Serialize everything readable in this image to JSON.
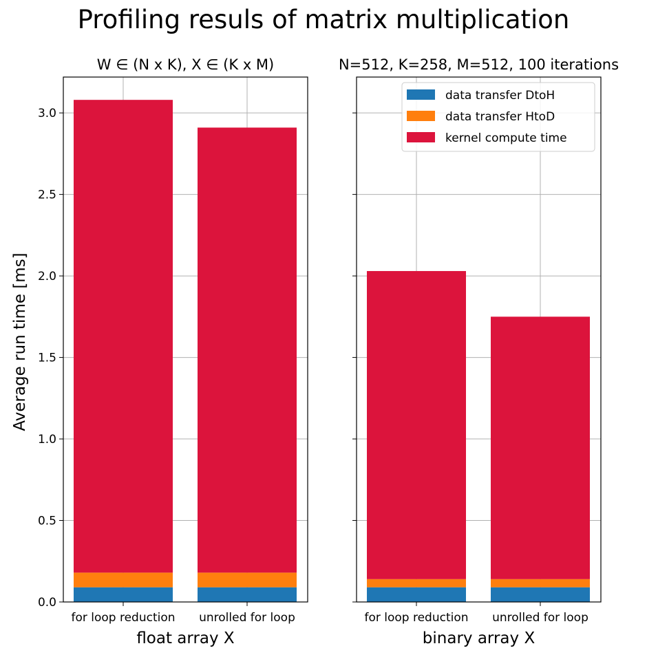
{
  "chart_data": {
    "title": "Profiling resuls of matrix multiplication",
    "ylabel": "Average run time [ms]",
    "ylim": [
      0,
      3.22
    ],
    "yticks": [
      "0.0",
      "0.5",
      "1.0",
      "1.5",
      "2.0",
      "2.5",
      "3.0"
    ],
    "ytick_values": [
      0,
      0.5,
      1.0,
      1.5,
      2.0,
      2.5,
      3.0
    ],
    "grid": true,
    "legend": {
      "placement": "top-right",
      "entries": [
        "data transfer DtoH",
        "data transfer HtoD",
        "kernel compute time"
      ]
    },
    "colors": {
      "data transfer DtoH": "#1f77b4",
      "data transfer HtoD": "#ff7f0e",
      "kernel compute time": "#dc143c"
    },
    "panels": [
      {
        "type": "bar",
        "stacked": true,
        "title": "W ∈ (N x K), X ∈ (K x M)",
        "xlabel": "float array X",
        "categories": [
          "for loop reduction",
          "unrolled for loop"
        ],
        "series": [
          {
            "name": "data transfer DtoH",
            "values": [
              0.09,
              0.09
            ]
          },
          {
            "name": "data transfer HtoD",
            "values": [
              0.09,
              0.09
            ]
          },
          {
            "name": "kernel compute time",
            "values": [
              2.9,
              2.73
            ]
          }
        ]
      },
      {
        "type": "bar",
        "stacked": true,
        "title": "N=512, K=258, M=512, 100 iterations",
        "xlabel": "binary array X",
        "categories": [
          "for loop reduction",
          "unrolled for loop"
        ],
        "series": [
          {
            "name": "data transfer DtoH",
            "values": [
              0.09,
              0.09
            ]
          },
          {
            "name": "data transfer HtoD",
            "values": [
              0.05,
              0.05
            ]
          },
          {
            "name": "kernel compute time",
            "values": [
              1.89,
              1.61
            ]
          }
        ]
      }
    ]
  }
}
